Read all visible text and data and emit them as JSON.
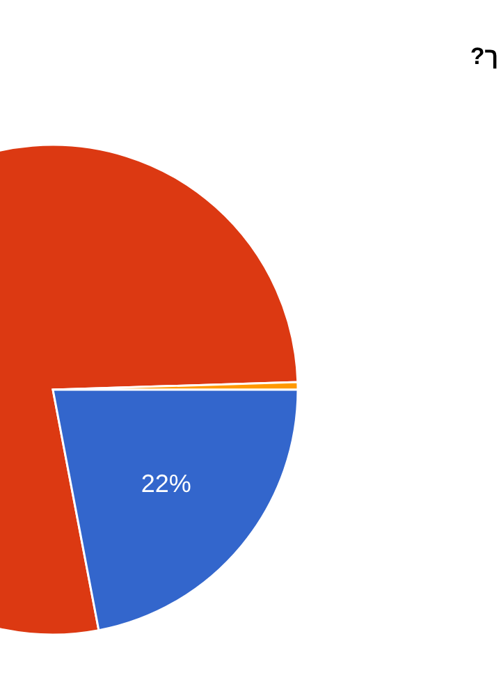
{
  "chart_data": {
    "type": "pie",
    "title": "?ך",
    "categories": [
      null,
      null,
      null
    ],
    "values": [
      77.5,
      0.5,
      22
    ],
    "colors": [
      "#dc3912",
      "#ff9900",
      "#3366cc"
    ],
    "value_labels": [
      null,
      null,
      "22%"
    ]
  }
}
